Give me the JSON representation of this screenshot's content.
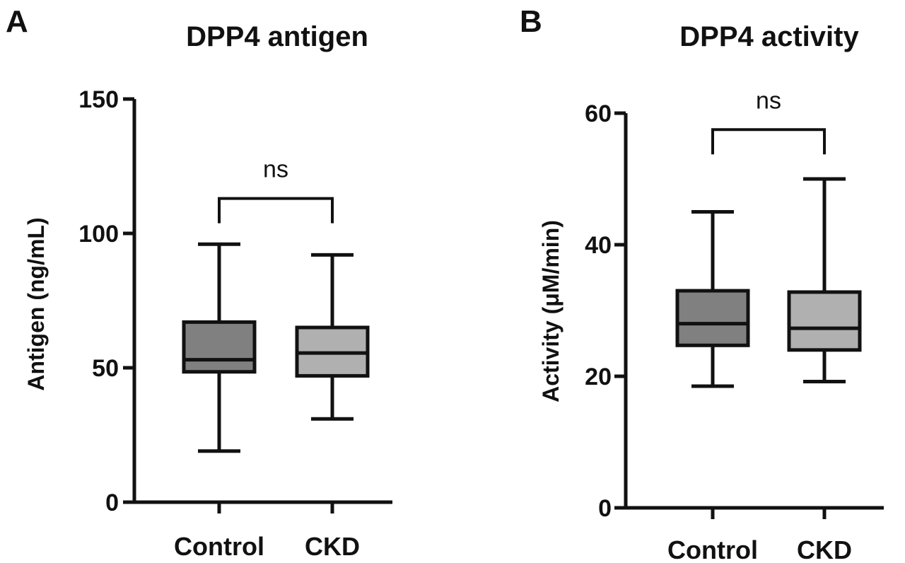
{
  "chart_data": [
    {
      "panel": "A",
      "type": "box",
      "title": "DPP4 antigen",
      "ylabel": "Antigen (ng/mL)",
      "xlabel": "",
      "ylim": [
        0,
        150
      ],
      "yticks": [
        0,
        50,
        100,
        150
      ],
      "categories": [
        "Control",
        "CKD"
      ],
      "boxes": [
        {
          "category": "Control",
          "min": 19,
          "q1": 48.5,
          "median": 53,
          "q3": 67,
          "max": 96,
          "color": "#808080"
        },
        {
          "category": "CKD",
          "min": 31,
          "q1": 47,
          "median": 55.5,
          "q3": 65,
          "max": 92,
          "color": "#b0b0b0"
        }
      ],
      "significance": {
        "label": "ns",
        "y": 113
      }
    },
    {
      "panel": "B",
      "type": "box",
      "title": "DPP4 activity",
      "ylabel": "Activity (μM/min)",
      "xlabel": "",
      "ylim": [
        0,
        60
      ],
      "yticks": [
        0,
        20,
        40,
        60
      ],
      "categories": [
        "Control",
        "CKD"
      ],
      "boxes": [
        {
          "category": "Control",
          "min": 18.5,
          "q1": 24.7,
          "median": 28,
          "q3": 33,
          "max": 45,
          "color": "#808080"
        },
        {
          "category": "CKD",
          "min": 19.2,
          "q1": 24,
          "median": 27.3,
          "q3": 32.8,
          "max": 50,
          "color": "#b0b0b0"
        }
      ],
      "significance": {
        "label": "ns",
        "y": 57.5
      }
    }
  ]
}
